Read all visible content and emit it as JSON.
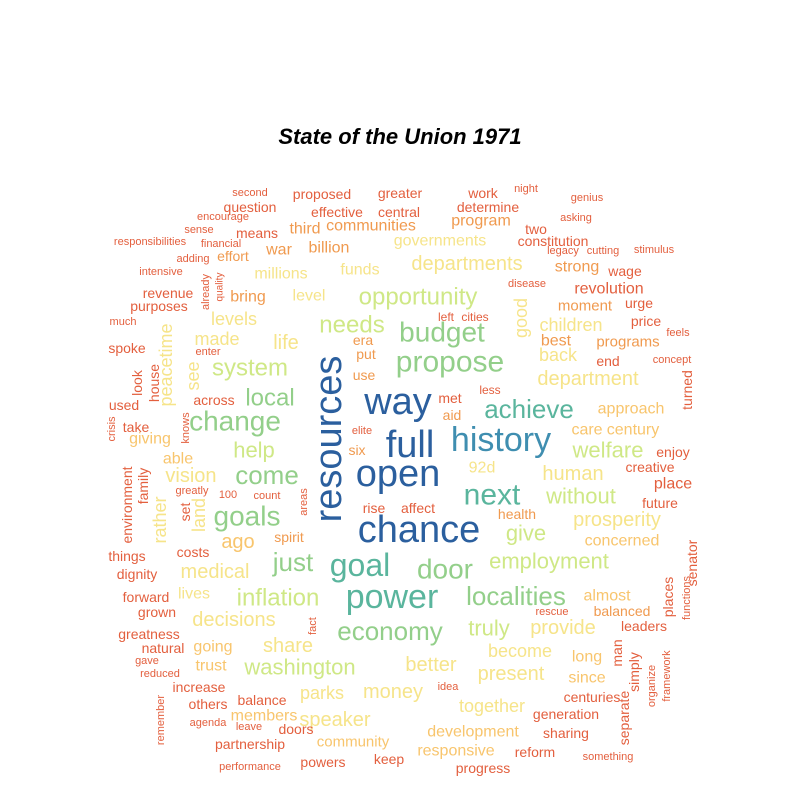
{
  "title": "State of the Union 1971",
  "chart_data": {
    "type": "wordcloud",
    "title": "State of the Union 1971",
    "palette": {
      "c1": "#2b5f9e",
      "c2": "#3f8eb0",
      "c3": "#5ab59d",
      "c4": "#93cf8a",
      "c5": "#cfe886",
      "c6": "#f6e48a",
      "c7": "#f8c56d",
      "c8": "#f09a4f",
      "c9": "#e35f3e"
    },
    "words": [
      {
        "text": "resources",
        "c": "c1"
      },
      {
        "text": "way",
        "c": "c1"
      },
      {
        "text": "full",
        "c": "c1"
      },
      {
        "text": "open",
        "c": "c1"
      },
      {
        "text": "chance",
        "c": "c1"
      },
      {
        "text": "history",
        "c": "c2"
      },
      {
        "text": "power",
        "c": "c3"
      },
      {
        "text": "goal",
        "c": "c3"
      },
      {
        "text": "next",
        "c": "c3"
      },
      {
        "text": "achieve",
        "c": "c3"
      },
      {
        "text": "door",
        "c": "c4"
      },
      {
        "text": "propose",
        "c": "c4"
      },
      {
        "text": "budget",
        "c": "c4"
      },
      {
        "text": "localities",
        "c": "c4"
      },
      {
        "text": "economy",
        "c": "c4"
      },
      {
        "text": "change",
        "c": "c4"
      },
      {
        "text": "goals",
        "c": "c4"
      },
      {
        "text": "come",
        "c": "c4"
      },
      {
        "text": "just",
        "c": "c4"
      },
      {
        "text": "needs",
        "c": "c5"
      },
      {
        "text": "opportunity",
        "c": "c5"
      },
      {
        "text": "system",
        "c": "c5"
      },
      {
        "text": "local",
        "c": "c4"
      },
      {
        "text": "help",
        "c": "c5"
      },
      {
        "text": "inflation",
        "c": "c5"
      },
      {
        "text": "washington",
        "c": "c5"
      },
      {
        "text": "truly",
        "c": "c5"
      },
      {
        "text": "without",
        "c": "c5"
      },
      {
        "text": "give",
        "c": "c5"
      },
      {
        "text": "employment",
        "c": "c5"
      },
      {
        "text": "welfare",
        "c": "c5"
      },
      {
        "text": "department",
        "c": "c6"
      },
      {
        "text": "departments",
        "c": "c6"
      },
      {
        "text": "prosperity",
        "c": "c6"
      },
      {
        "text": "provide",
        "c": "c6"
      },
      {
        "text": "share",
        "c": "c6"
      },
      {
        "text": "decisions",
        "c": "c6"
      },
      {
        "text": "medical",
        "c": "c6"
      },
      {
        "text": "vision",
        "c": "c6"
      },
      {
        "text": "human",
        "c": "c6"
      },
      {
        "text": "present",
        "c": "c6"
      },
      {
        "text": "better",
        "c": "c6"
      },
      {
        "text": "money",
        "c": "c6"
      },
      {
        "text": "speaker",
        "c": "c6"
      },
      {
        "text": "together",
        "c": "c6"
      },
      {
        "text": "become",
        "c": "c6"
      },
      {
        "text": "parks",
        "c": "c6"
      },
      {
        "text": "ago",
        "c": "c7"
      },
      {
        "text": "life",
        "c": "c6"
      },
      {
        "text": "made",
        "c": "c6"
      },
      {
        "text": "levels",
        "c": "c6"
      },
      {
        "text": "level",
        "c": "c6"
      },
      {
        "text": "funds",
        "c": "c6"
      },
      {
        "text": "millions",
        "c": "c6"
      },
      {
        "text": "governments",
        "c": "c6"
      },
      {
        "text": "children",
        "c": "c6"
      },
      {
        "text": "back",
        "c": "c6"
      },
      {
        "text": "92d",
        "c": "c6"
      },
      {
        "text": "land",
        "c": "c6"
      },
      {
        "text": "rather",
        "c": "c6"
      },
      {
        "text": "see",
        "c": "c6"
      },
      {
        "text": "peacetime",
        "c": "c6"
      },
      {
        "text": "good",
        "c": "c6"
      },
      {
        "text": "lives",
        "c": "c6"
      },
      {
        "text": "concerned",
        "c": "c7"
      },
      {
        "text": "care",
        "c": "c7"
      },
      {
        "text": "approach",
        "c": "c7"
      },
      {
        "text": "century",
        "c": "c7"
      },
      {
        "text": "able",
        "c": "c7"
      },
      {
        "text": "giving",
        "c": "c7"
      },
      {
        "text": "going",
        "c": "c7"
      },
      {
        "text": "trust",
        "c": "c7"
      },
      {
        "text": "members",
        "c": "c7"
      },
      {
        "text": "community",
        "c": "c7"
      },
      {
        "text": "development",
        "c": "c7"
      },
      {
        "text": "responsive",
        "c": "c7"
      },
      {
        "text": "long",
        "c": "c7"
      },
      {
        "text": "since",
        "c": "c7"
      },
      {
        "text": "almost",
        "c": "c7"
      },
      {
        "text": "balanced",
        "c": "c8"
      },
      {
        "text": "best",
        "c": "c8"
      },
      {
        "text": "put",
        "c": "c8"
      },
      {
        "text": "use",
        "c": "c8"
      },
      {
        "text": "era",
        "c": "c8"
      },
      {
        "text": "six",
        "c": "c8"
      },
      {
        "text": "aid",
        "c": "c8"
      },
      {
        "text": "met",
        "c": "c9"
      },
      {
        "text": "health",
        "c": "c8"
      },
      {
        "text": "war",
        "c": "c8"
      },
      {
        "text": "third",
        "c": "c8"
      },
      {
        "text": "billion",
        "c": "c8"
      },
      {
        "text": "program",
        "c": "c8"
      },
      {
        "text": "communities",
        "c": "c8"
      },
      {
        "text": "bring",
        "c": "c8"
      },
      {
        "text": "strong",
        "c": "c8"
      },
      {
        "text": "moment",
        "c": "c8"
      },
      {
        "text": "programs",
        "c": "c8"
      },
      {
        "text": "revolution",
        "c": "c9"
      },
      {
        "text": "spirit",
        "c": "c8"
      },
      {
        "text": "effort",
        "c": "c8"
      },
      {
        "text": "across",
        "c": "c9"
      },
      {
        "text": "elite",
        "c": "c9"
      },
      {
        "text": "less",
        "c": "c9"
      },
      {
        "text": "rise",
        "c": "c9"
      },
      {
        "text": "affect",
        "c": "c9"
      },
      {
        "text": "left",
        "c": "c9"
      },
      {
        "text": "cities",
        "c": "c9"
      },
      {
        "text": "disease",
        "c": "c9"
      },
      {
        "text": "proposed",
        "c": "c9"
      },
      {
        "text": "greater",
        "c": "c9"
      },
      {
        "text": "work",
        "c": "c9"
      },
      {
        "text": "night",
        "c": "c9"
      },
      {
        "text": "second",
        "c": "c9"
      },
      {
        "text": "genius",
        "c": "c9"
      },
      {
        "text": "question",
        "c": "c9"
      },
      {
        "text": "effective",
        "c": "c9"
      },
      {
        "text": "central",
        "c": "c9"
      },
      {
        "text": "determine",
        "c": "c9"
      },
      {
        "text": "encourage",
        "c": "c9"
      },
      {
        "text": "asking",
        "c": "c9"
      },
      {
        "text": "sense",
        "c": "c9"
      },
      {
        "text": "means",
        "c": "c9"
      },
      {
        "text": "two",
        "c": "c9"
      },
      {
        "text": "responsibilities",
        "c": "c9"
      },
      {
        "text": "financial",
        "c": "c9"
      },
      {
        "text": "constitution",
        "c": "c9"
      },
      {
        "text": "legacy",
        "c": "c9"
      },
      {
        "text": "cutting",
        "c": "c9"
      },
      {
        "text": "stimulus",
        "c": "c9"
      },
      {
        "text": "adding",
        "c": "c9"
      },
      {
        "text": "wage",
        "c": "c9"
      },
      {
        "text": "intensive",
        "c": "c9"
      },
      {
        "text": "already",
        "c": "c9"
      },
      {
        "text": "quality",
        "c": "c9"
      },
      {
        "text": "revenue",
        "c": "c9"
      },
      {
        "text": "purposes",
        "c": "c9"
      },
      {
        "text": "urge",
        "c": "c9"
      },
      {
        "text": "much",
        "c": "c9"
      },
      {
        "text": "price",
        "c": "c9"
      },
      {
        "text": "feels",
        "c": "c9"
      },
      {
        "text": "spoke",
        "c": "c9"
      },
      {
        "text": "enter",
        "c": "c9"
      },
      {
        "text": "end",
        "c": "c9"
      },
      {
        "text": "concept",
        "c": "c9"
      },
      {
        "text": "look",
        "c": "c9"
      },
      {
        "text": "house",
        "c": "c9"
      },
      {
        "text": "used",
        "c": "c9"
      },
      {
        "text": "turned",
        "c": "c9"
      },
      {
        "text": "crisis",
        "c": "c9"
      },
      {
        "text": "take",
        "c": "c9"
      },
      {
        "text": "knows",
        "c": "c9"
      },
      {
        "text": "enjoy",
        "c": "c9"
      },
      {
        "text": "creative",
        "c": "c9"
      },
      {
        "text": "environment",
        "c": "c9"
      },
      {
        "text": "family",
        "c": "c9"
      },
      {
        "text": "greatly",
        "c": "c9"
      },
      {
        "text": "100",
        "c": "c9"
      },
      {
        "text": "count",
        "c": "c9"
      },
      {
        "text": "areas",
        "c": "c9"
      },
      {
        "text": "place",
        "c": "c9"
      },
      {
        "text": "future",
        "c": "c9"
      },
      {
        "text": "set",
        "c": "c9"
      },
      {
        "text": "costs",
        "c": "c9"
      },
      {
        "text": "things",
        "c": "c9"
      },
      {
        "text": "dignity",
        "c": "c9"
      },
      {
        "text": "senator",
        "c": "c9"
      },
      {
        "text": "forward",
        "c": "c9"
      },
      {
        "text": "grown",
        "c": "c9"
      },
      {
        "text": "rescue",
        "c": "c9"
      },
      {
        "text": "places",
        "c": "c9"
      },
      {
        "text": "man",
        "c": "c9"
      },
      {
        "text": "functions",
        "c": "c9"
      },
      {
        "text": "fact",
        "c": "c9"
      },
      {
        "text": "greatness",
        "c": "c9"
      },
      {
        "text": "natural",
        "c": "c9"
      },
      {
        "text": "leaders",
        "c": "c9"
      },
      {
        "text": "gave",
        "c": "c9"
      },
      {
        "text": "reduced",
        "c": "c9"
      },
      {
        "text": "simply",
        "c": "c9"
      },
      {
        "text": "organize",
        "c": "c9"
      },
      {
        "text": "framework",
        "c": "c9"
      },
      {
        "text": "increase",
        "c": "c9"
      },
      {
        "text": "idea",
        "c": "c9"
      },
      {
        "text": "centuries",
        "c": "c9"
      },
      {
        "text": "balance",
        "c": "c9"
      },
      {
        "text": "others",
        "c": "c9"
      },
      {
        "text": "separate",
        "c": "c9"
      },
      {
        "text": "generation",
        "c": "c9"
      },
      {
        "text": "remember",
        "c": "c9"
      },
      {
        "text": "agenda",
        "c": "c9"
      },
      {
        "text": "leave",
        "c": "c9"
      },
      {
        "text": "doors",
        "c": "c9"
      },
      {
        "text": "sharing",
        "c": "c9"
      },
      {
        "text": "partnership",
        "c": "c9"
      },
      {
        "text": "reform",
        "c": "c9"
      },
      {
        "text": "keep",
        "c": "c9"
      },
      {
        "text": "powers",
        "c": "c9"
      },
      {
        "text": "something",
        "c": "c9"
      },
      {
        "text": "performance",
        "c": "c9"
      },
      {
        "text": "progress",
        "c": "c9"
      }
    ]
  }
}
